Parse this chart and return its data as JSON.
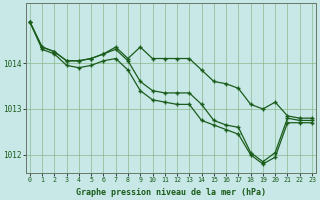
{
  "title": "Graphe pression niveau de la mer (hPa)",
  "background_color": "#c8e8e8",
  "plot_bg_color": "#c8e8e8",
  "line_color": "#1a5c1a",
  "grid_color": "#8ab88a",
  "line1": [
    1014.9,
    1014.35,
    1014.25,
    1014.05,
    1014.05,
    1014.1,
    1014.2,
    1014.35,
    1014.1,
    1014.35,
    1014.1,
    1014.1,
    1014.1,
    1014.1,
    1013.85,
    1013.6,
    1013.55,
    1013.45,
    1013.1,
    1013.0,
    1013.15,
    1012.85,
    1012.8,
    1012.8
  ],
  "line2": [
    1014.9,
    1014.35,
    1014.25,
    1014.05,
    1014.05,
    1014.1,
    1014.2,
    1014.3,
    1014.05,
    1013.6,
    1013.4,
    1013.35,
    1013.35,
    1013.35,
    1013.1,
    1012.75,
    1012.65,
    1012.6,
    1012.05,
    1011.85,
    1012.05,
    1012.8,
    1012.75,
    1012.75
  ],
  "line3": [
    1014.9,
    1014.3,
    1014.2,
    1013.95,
    1013.9,
    1013.95,
    1014.05,
    1014.1,
    1013.85,
    1013.4,
    1013.2,
    1013.15,
    1013.1,
    1013.1,
    1012.75,
    1012.65,
    1012.55,
    1012.45,
    1012.0,
    1011.8,
    1011.95,
    1012.7,
    1012.7,
    1012.7
  ],
  "ylim": [
    1011.6,
    1015.3
  ],
  "yticks": [
    1012,
    1013,
    1014
  ],
  "xticks": [
    0,
    1,
    2,
    3,
    4,
    5,
    6,
    7,
    8,
    9,
    10,
    11,
    12,
    13,
    14,
    15,
    16,
    17,
    18,
    19,
    20,
    21,
    22,
    23
  ]
}
